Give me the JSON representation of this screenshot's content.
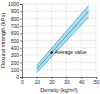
{
  "chart_data": {
    "type": "line",
    "xlabel": "Density (kg/m³)",
    "ylabel": "Flexural strength (kPa)",
    "x": [
      10,
      45
    ],
    "series": [
      {
        "color": "#2a9fd0",
        "values": [
          60,
          820
        ]
      },
      {
        "color": "#2a9fd0",
        "values": [
          110,
          900
        ]
      },
      {
        "color": "#2a9fd0",
        "values": [
          160,
          980
        ]
      }
    ],
    "annotations": [
      {
        "text": "Average value",
        "x": 20,
        "y": 336
      }
    ],
    "xlim": [
      0,
      50
    ],
    "xticks": [
      0,
      10,
      20,
      30,
      40,
      50
    ],
    "ylim": [
      0,
      1000
    ],
    "yticks": [
      0,
      100,
      200,
      300,
      400,
      500,
      600,
      700,
      800,
      900,
      1000
    ],
    "grid": true
  }
}
